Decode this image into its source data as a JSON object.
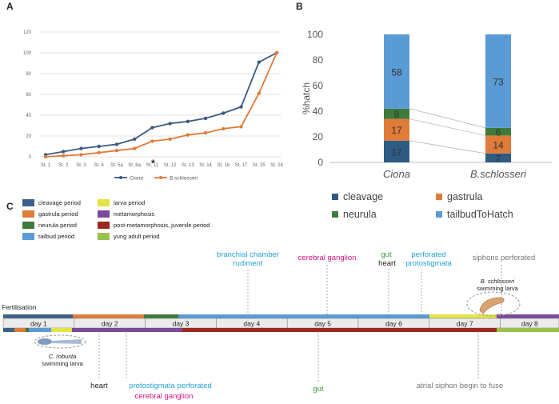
{
  "panels": {
    "a": "A",
    "b": "B",
    "c": "C"
  },
  "chart_data": [
    {
      "type": "line",
      "panel": "A",
      "categories": [
        "St. 1",
        "St. 2",
        "St. 3",
        "St. 4",
        "St. 5a",
        "St. 6a",
        "St. 11",
        "St. 12",
        "St. 13",
        "St. 14",
        "St. 16",
        "St. 17",
        "St. 25",
        "St. 26"
      ],
      "yticks": [
        "0",
        "20",
        "40",
        "60",
        "80",
        "100",
        "120"
      ],
      "ylim": [
        0,
        120
      ],
      "annotation": "*",
      "series": [
        {
          "name": "Ciona",
          "color": "#3d5a80",
          "values": [
            2,
            5,
            8,
            10,
            12,
            17,
            28,
            32,
            34,
            37,
            42,
            48,
            91,
            100
          ]
        },
        {
          "name": "B.schlosseri",
          "color": "#e07b39",
          "values": [
            0,
            1,
            2,
            4,
            6,
            8,
            15,
            17,
            21,
            23,
            27,
            29,
            61,
            100
          ]
        }
      ]
    },
    {
      "type": "bar",
      "panel": "B",
      "stacked": true,
      "categories": [
        "Ciona",
        "B.schlosseri"
      ],
      "ylabel": "%hatch",
      "yticks": [
        "0",
        "20",
        "40",
        "60",
        "80",
        "100"
      ],
      "ylim": [
        0,
        100
      ],
      "series": [
        {
          "name": "cleavage",
          "color": "#2e5b82",
          "values": [
            17,
            7
          ],
          "labels": [
            "17",
            "7"
          ]
        },
        {
          "name": "gastrula",
          "color": "#e07b39",
          "values": [
            17,
            14
          ],
          "labels": [
            "17",
            "14"
          ]
        },
        {
          "name": "neurula",
          "color": "#3e7a3a",
          "values": [
            8,
            6
          ],
          "labels": [
            "8",
            "6"
          ]
        },
        {
          "name": "tailbudToHatch",
          "color": "#5b9bd5",
          "values": [
            58,
            73
          ],
          "labels": [
            "58",
            "73"
          ]
        }
      ]
    }
  ],
  "timeline": {
    "legend": [
      {
        "label": "cleavage period",
        "color": "#3a6189"
      },
      {
        "label": "gastrula period",
        "color": "#e07b39"
      },
      {
        "label": "neurula period",
        "color": "#3e7a3a"
      },
      {
        "label": "tailbud period",
        "color": "#5b9bd5"
      },
      {
        "label": "larva period",
        "color": "#e3e34a"
      },
      {
        "label": "metamorphosis",
        "color": "#7a4a9b"
      },
      {
        "label": "post-metamorphosis, juvenile period",
        "color": "#9b2a1e"
      },
      {
        "label": "yung adult period",
        "color": "#99c24d"
      }
    ],
    "fertilisation": "Fertilisation",
    "days": [
      "day 1",
      "day 2",
      "day 3",
      "day 4",
      "day 5",
      "day 6",
      "day 7",
      "day 8"
    ],
    "top_events": [
      {
        "line1": "branchial chamber",
        "line2": "rudiment",
        "color": "#26a3d6"
      },
      {
        "line1": "cerebral ganglion",
        "line2": "",
        "color": "#d6107e"
      },
      {
        "line1": "gut",
        "line2": "",
        "color": "#3a9b3a"
      },
      {
        "line1": "heart",
        "line2": "",
        "color": "#222222"
      },
      {
        "line1": "perforated",
        "line2": "protostigmata",
        "color": "#26a3d6"
      },
      {
        "line1": "siphons perforated",
        "line2": "",
        "color": "#777777"
      }
    ],
    "bottom_events": [
      {
        "line1": "heart",
        "line2": "",
        "color": "#222222"
      },
      {
        "line1": "protostigmata perforated",
        "line2": "",
        "color": "#26a3d6"
      },
      {
        "line1": "cerebral ganglion",
        "line2": "",
        "color": "#d6107e"
      },
      {
        "line1": "gut",
        "line2": "",
        "color": "#3a9b3a"
      },
      {
        "line1": "atrial siphon begin to fuse",
        "line2": "",
        "color": "#777777"
      }
    ],
    "larva_top": {
      "name": "B. schlosseri",
      "sub": "swimming larva"
    },
    "larva_bottom": {
      "name": "C. robusta",
      "sub": "swimming larva"
    }
  }
}
